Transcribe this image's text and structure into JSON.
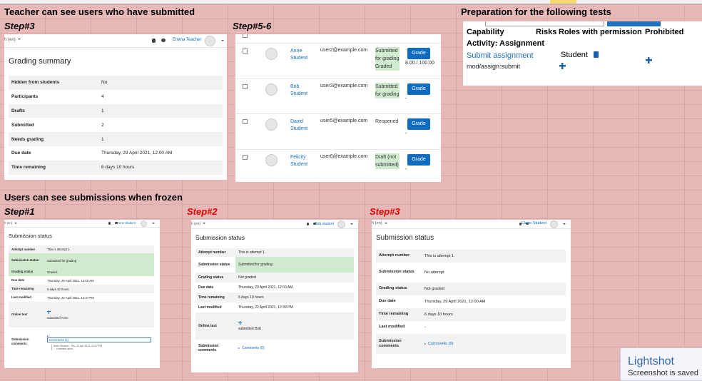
{
  "sheet": {
    "heading_teacher": "Teacher can see users who have submitted",
    "step_teacher_summary": "Step#3",
    "step_teacher_table": "Step#5-6",
    "heading_prep": "Preparation for the following tests",
    "heading_frozen": "Users can see submissions when frozen",
    "steps_frozen": [
      "Step#1",
      "Step#2",
      "Step#3"
    ]
  },
  "grading_summary": {
    "language": "h (en)",
    "user": "Emma Teacher",
    "title": "Grading summary",
    "rows": [
      {
        "label": "Hidden from students",
        "value": "No"
      },
      {
        "label": "Participants",
        "value": "4"
      },
      {
        "label": "Drafts",
        "value": "1"
      },
      {
        "label": "Submitted",
        "value": "2"
      },
      {
        "label": "Needs grading",
        "value": "1"
      },
      {
        "label": "Due date",
        "value": "Thursday, 29 April 2021, 12:00 AM"
      },
      {
        "label": "Time remaining",
        "value": "6 days 10 hours"
      }
    ]
  },
  "grading_table": {
    "button": "Grade",
    "rows": [
      {
        "name": "Anne Student",
        "email": "user2@example.com",
        "status": "Submitted for grading Graded",
        "highlight": true,
        "grade": "8.00 / 100.00"
      },
      {
        "name": "Bob Student",
        "email": "user3@example.com",
        "status": "Submitted for grading",
        "highlight": true,
        "grade": "-"
      },
      {
        "name": "David Student",
        "email": "user5@example.com",
        "status": "Reopened",
        "highlight": false,
        "grade": "-"
      },
      {
        "name": "Felicity Student",
        "email": "user6@example.com",
        "status": "Draft (not submitted)",
        "highlight": true,
        "grade": "-"
      }
    ]
  },
  "permissions": {
    "headers": [
      "Capability",
      "Risks",
      "Roles with permission",
      "Prohibited"
    ],
    "activity": "Activity: Assignment",
    "capability_name": "Submit assignment",
    "capability_id": "mod/assign:submit",
    "role": "Student"
  },
  "submissions": [
    {
      "language": "h (en)",
      "user": "Anne Student",
      "title": "Submission status",
      "rows": [
        {
          "label": "Attempt number",
          "value": "This is attempt 1."
        },
        {
          "label": "Submission status",
          "value": "Submitted for grading",
          "highlight": true
        },
        {
          "label": "Grading status",
          "value": "Graded",
          "highlight": true
        },
        {
          "label": "Due date",
          "value": "Thursday, 29 April 2021, 12:00 AM"
        },
        {
          "label": "Time remaining",
          "value": "6 days 10 hours"
        },
        {
          "label": "Last modified",
          "value": "Thursday, 22 April 2021, 12:37 PM"
        },
        {
          "label": "Online text",
          "value": "submitted Anne"
        },
        {
          "label": "Submission comments",
          "value": "Comments (1)"
        }
      ],
      "comment": {
        "author": "Anne Student - Thu, 22 Apr 2021, 12:37 PM",
        "text": "comment anne"
      }
    },
    {
      "language": "h (en)",
      "user": "Bob student",
      "title": "Submission status",
      "rows": [
        {
          "label": "Attempt number",
          "value": "This is attempt 1."
        },
        {
          "label": "Submission status",
          "value": "Submitted for grading",
          "highlight": true
        },
        {
          "label": "Grading status",
          "value": "Not graded"
        },
        {
          "label": "Due date",
          "value": "Thursday, 29 April 2021, 12:00 AM"
        },
        {
          "label": "Time remaining",
          "value": "6 days 10 hours"
        },
        {
          "label": "Last modified",
          "value": "Thursday, 22 April 2021, 12:39 PM"
        },
        {
          "label": "Online text",
          "value": "submitted Bob"
        },
        {
          "label": "Submission comments",
          "value": "Comments (0)"
        }
      ]
    },
    {
      "language": "h (en)",
      "user": "Claire Student",
      "title": "Submission status",
      "rows": [
        {
          "label": "Attempt number",
          "value": "This is attempt 1."
        },
        {
          "label": "Submission status",
          "value": "No attempt"
        },
        {
          "label": "Grading status",
          "value": "Not graded"
        },
        {
          "label": "Due date",
          "value": "Thursday, 29 April 2021, 12:00 AM"
        },
        {
          "label": "Time remaining",
          "value": "6 days 10 hours"
        },
        {
          "label": "Last modified",
          "value": "-"
        },
        {
          "label": "Submission comments",
          "value": "Comments (0)"
        }
      ]
    }
  ],
  "lightshot": {
    "title": "Lightshot",
    "message": "Screenshot is saved"
  }
}
